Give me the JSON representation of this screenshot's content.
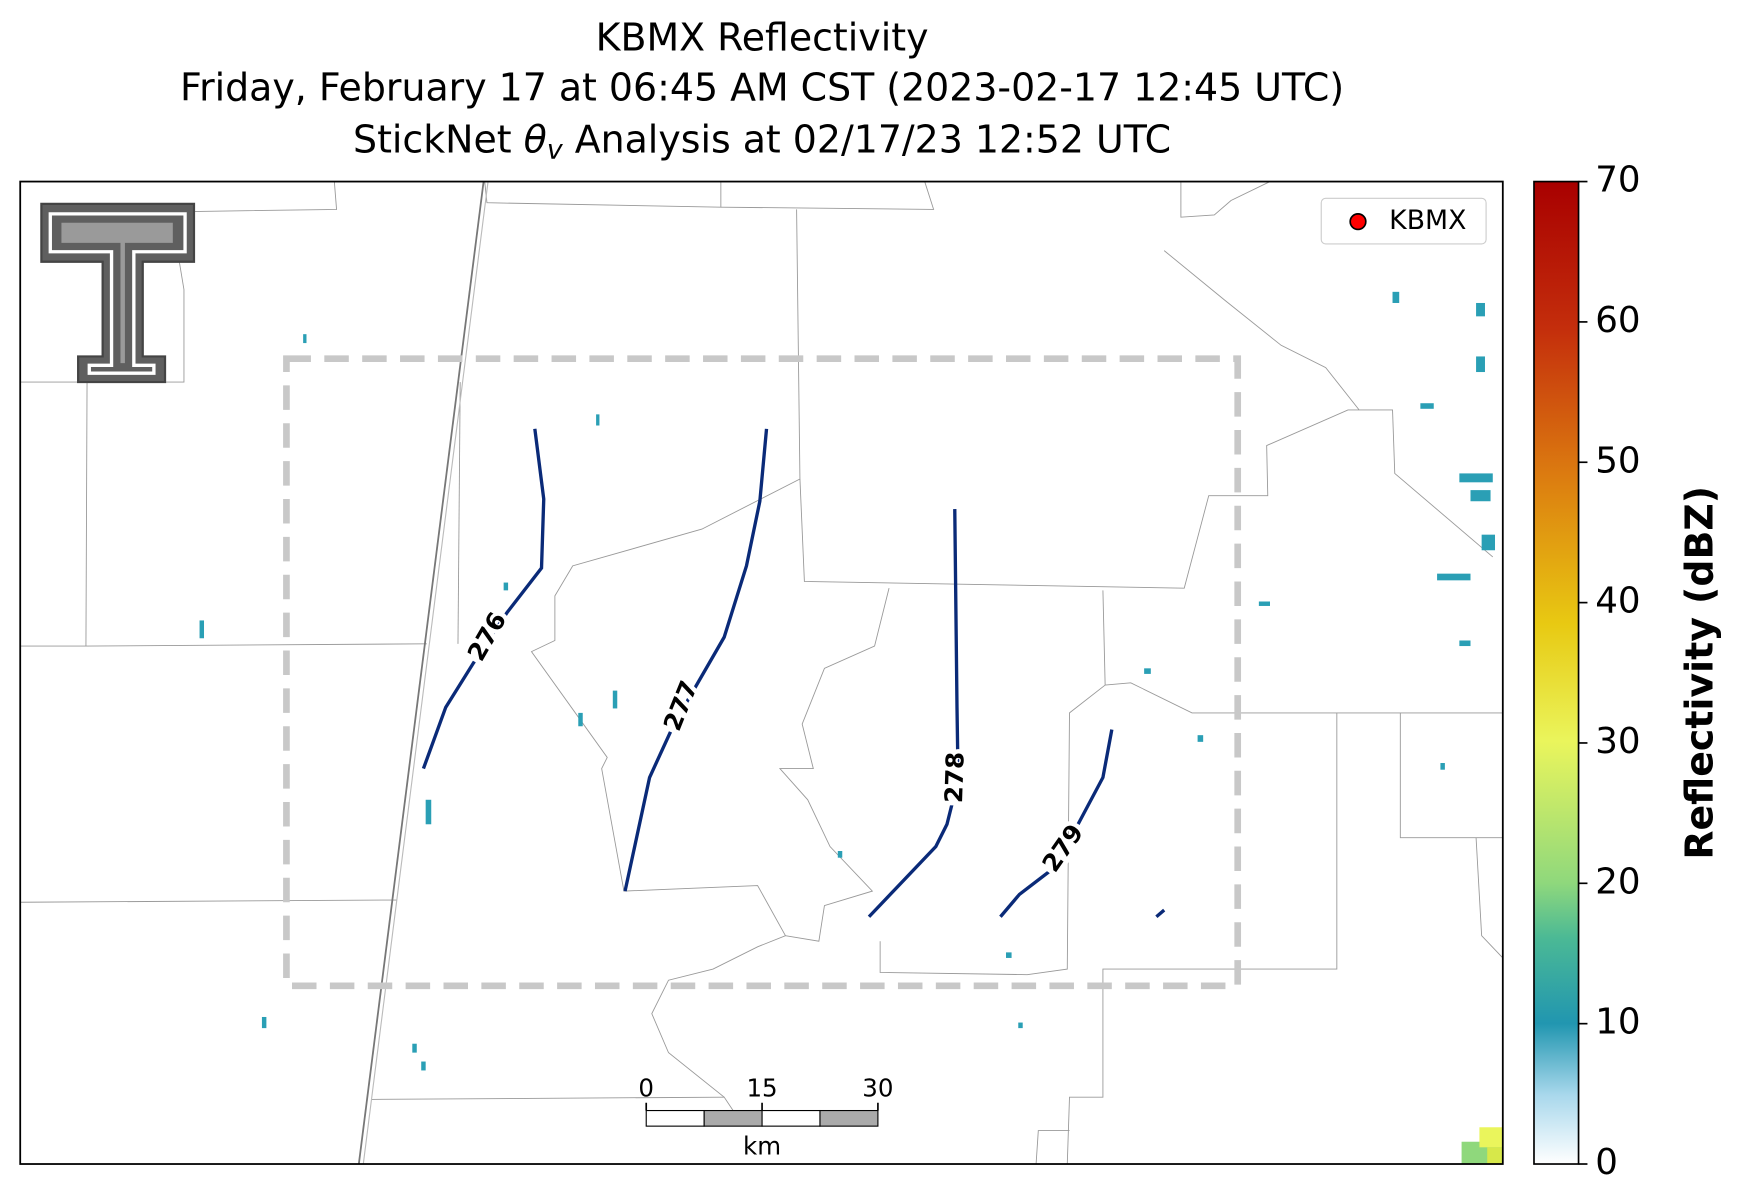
{
  "chart_data": {
    "type": "radar-map",
    "title": "KBMX Reflectivity",
    "subtitle": "Friday, February 17 at 06:45 AM CST (2023-02-17 12:45 UTC)",
    "analysis_title": {
      "prefix": "StickNet",
      "symbol": "θ",
      "subscript": "v",
      "suffix": "Analysis at 02/17/23 12:52 UTC"
    },
    "legend": {
      "name": "KBMX",
      "color": "#ff0000",
      "position": "upper right"
    },
    "contours": [
      {
        "level": 276
      },
      {
        "level": 277
      },
      {
        "level": 278
      },
      {
        "level": 279
      }
    ],
    "contour_color": "#0a2a78",
    "colorbar": {
      "label": "Reflectivity (dBZ)",
      "ylim": [
        0,
        70
      ],
      "yticks": [
        0,
        10,
        20,
        30,
        40,
        50,
        60,
        70
      ]
    },
    "scale_bar": {
      "label": "km",
      "xlim": [
        0,
        30
      ],
      "xticks": [
        0,
        15,
        30
      ]
    }
  }
}
